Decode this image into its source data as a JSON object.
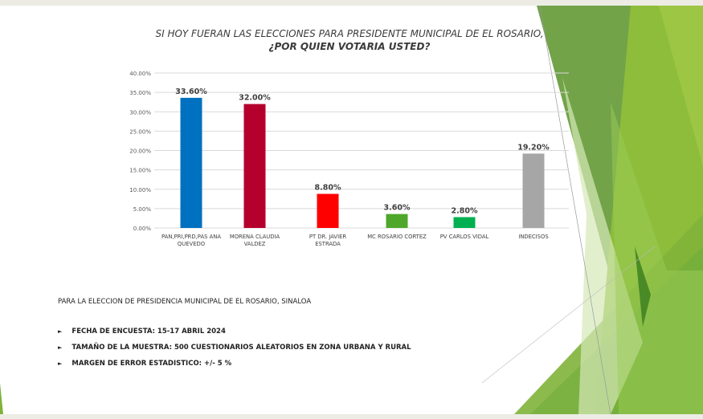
{
  "chart_data": {
    "type": "bar",
    "title": "SI HOY FUERAN LAS ELECCIONES PARA PRESIDENTE MUNICIPAL DE EL ROSARIO,",
    "subtitle": "¿POR QUIEN VOTARIA USTED?",
    "categories": [
      [
        "PAN,PRI,PRD,PAS ANA",
        "QUEVEDO"
      ],
      [
        "MORENA CLAUDIA",
        "VALDEZ"
      ],
      [
        "PT DR. JAVIER",
        "ESTRADA"
      ],
      [
        "MC ROSARIO CORTEZ"
      ],
      [
        "PV CARLOS VIDAL"
      ],
      [
        "INDECISOS"
      ]
    ],
    "values": [
      33.6,
      32.0,
      8.8,
      3.6,
      2.8,
      19.2
    ],
    "data_labels": [
      "33.60%",
      "32.00%",
      "8.80%",
      "3.60%",
      "2.80%",
      "19.20%"
    ],
    "colors": [
      "#0070c0",
      "#b5002d",
      "#ff0000",
      "#4ea72a",
      "#00b050",
      "#a6a6a6"
    ],
    "yticks": [
      "0.00%",
      "5.00%",
      "10.00%",
      "15.00%",
      "20.00%",
      "25.00%",
      "30.00%",
      "35.00%",
      "40.00%"
    ],
    "ylim": [
      0,
      40
    ],
    "grid": true,
    "xlabel": "",
    "ylabel": ""
  },
  "notes": {
    "heading": "PARA LA ELECCION DE PRESIDENCIA MUNICIPAL DE EL ROSARIO, SINALOA",
    "bullets": [
      "FECHA DE ENCUESTA: 15-17 ABRIL 2024",
      "TAMAÑO DE LA MUESTRA: 500 CUESTIONARIOS ALEATORIOS EN ZONA URBANA Y RURAL",
      "MARGEN DE ERROR ESTADISTICO:  +/- 5 %"
    ],
    "bullet_icon": "triangle-right-icon"
  }
}
